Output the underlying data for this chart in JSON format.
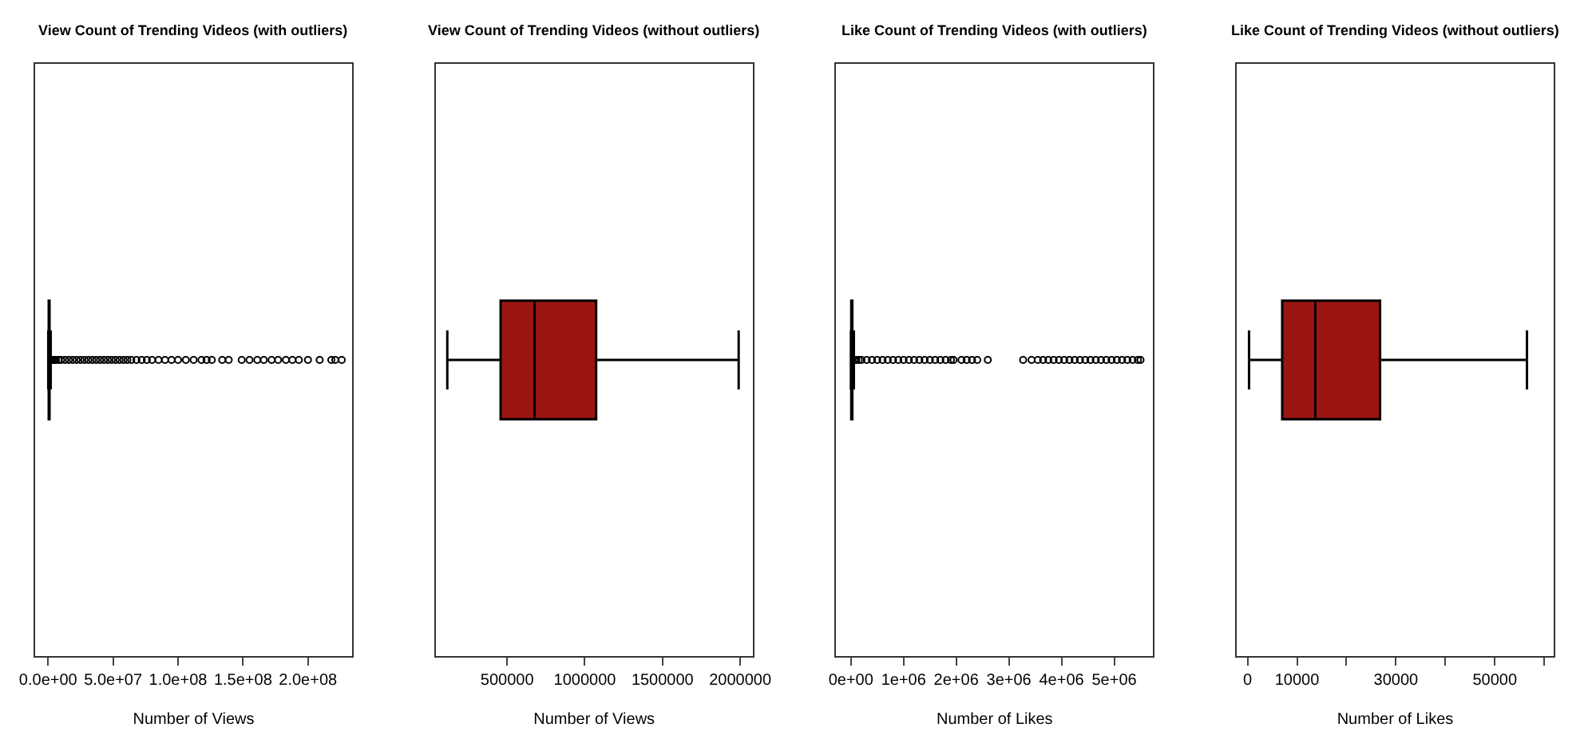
{
  "chart_data": [
    {
      "type": "box",
      "orientation": "horizontal",
      "title": "View Count of Trending Videos (with outliers)",
      "xlabel": "Number of Views",
      "categories": [
        null
      ],
      "color": "#9b1510",
      "boxes": [
        {
          "low": 115000,
          "q1": 458000,
          "median": 677000,
          "q3": 1073000,
          "high": 1990000,
          "outliers": [
            2200000,
            3000000,
            4000000,
            5000000,
            6000000,
            8000000,
            10000000,
            13000000,
            16000000,
            19000000,
            22000000,
            25000000,
            28000000,
            31000000,
            34000000,
            37000000,
            40000000,
            43000000,
            46000000,
            49000000,
            52000000,
            55000000,
            58000000,
            61000000,
            64000000,
            68000000,
            72000000,
            76000000,
            80000000,
            85000000,
            90000000,
            95000000,
            100000000,
            106000000,
            112000000,
            118000000,
            122000000,
            126000000,
            134000000,
            139000000,
            149000000,
            155000000,
            161000000,
            166000000,
            172000000,
            177000000,
            183000000,
            188000000,
            193000000,
            200000000,
            209000000,
            218000000,
            221000000,
            226000000
          ]
        }
      ],
      "xlim": [
        -10000000,
        234000000
      ],
      "xticks": [
        {
          "value": 0,
          "label": "0.0e+00"
        },
        {
          "value": 50000000,
          "label": "5.0e+07"
        },
        {
          "value": 100000000,
          "label": "1.0e+08"
        },
        {
          "value": 150000000,
          "label": "1.5e+08"
        },
        {
          "value": 200000000,
          "label": "2.0e+08"
        }
      ]
    },
    {
      "type": "box",
      "orientation": "horizontal",
      "title": "View Count of Trending Videos (without outliers)",
      "xlabel": "Number of Views",
      "categories": [
        null
      ],
      "color": "#9b1510",
      "boxes": [
        {
          "low": 115000,
          "q1": 458000,
          "median": 677000,
          "q3": 1073000,
          "high": 1990000
        }
      ],
      "xlim": [
        40000,
        2080000
      ],
      "xticks": [
        500000,
        1000000,
        1500000,
        2000000
      ]
    },
    {
      "type": "box",
      "orientation": "horizontal",
      "title": "Like Count of Trending Videos (with outliers)",
      "xlabel": "Number of Likes",
      "categories": [
        null
      ],
      "color": "#9b1510",
      "boxes": [
        {
          "low": 300,
          "q1": 7000,
          "median": 13700,
          "q3": 26800,
          "high": 56500,
          "outliers": [
            70000,
            100000,
            150000,
            200000,
            300000,
            400000,
            500000,
            600000,
            700000,
            800000,
            900000,
            1000000,
            1100000,
            1200000,
            1300000,
            1400000,
            1500000,
            1600000,
            1700000,
            1800000,
            1900000,
            1950000,
            2100000,
            2200000,
            2300000,
            2400000,
            2600000,
            3270000,
            3430000,
            3550000,
            3650000,
            3750000,
            3850000,
            3950000,
            4050000,
            4150000,
            4250000,
            4350000,
            4450000,
            4550000,
            4650000,
            4750000,
            4850000,
            4950000,
            5050000,
            5150000,
            5250000,
            5350000,
            5450000,
            5500000
          ]
        }
      ],
      "xlim": [
        -280000,
        5740000
      ],
      "xticks": [
        {
          "value": 0,
          "label": "0e+00"
        },
        {
          "value": 1000000,
          "label": "1e+06"
        },
        {
          "value": 2000000,
          "label": "2e+06"
        },
        {
          "value": 3000000,
          "label": "3e+06"
        },
        {
          "value": 4000000,
          "label": "4e+06"
        },
        {
          "value": 5000000,
          "label": "5e+06"
        }
      ]
    },
    {
      "type": "box",
      "orientation": "horizontal",
      "title": "Like Count of Trending Videos (without outliers)",
      "xlabel": "Number of Likes",
      "categories": [
        null
      ],
      "color": "#9b1510",
      "boxes": [
        {
          "low": 300,
          "q1": 7000,
          "median": 13700,
          "q3": 26800,
          "high": 56500
        }
      ],
      "xlim": [
        -2200,
        61900
      ],
      "xticks": [
        0,
        10000,
        {
          "value": 20000,
          "label": null
        },
        30000,
        {
          "value": 40000,
          "label": null
        },
        50000,
        {
          "value": 60000,
          "label": null
        }
      ]
    }
  ]
}
